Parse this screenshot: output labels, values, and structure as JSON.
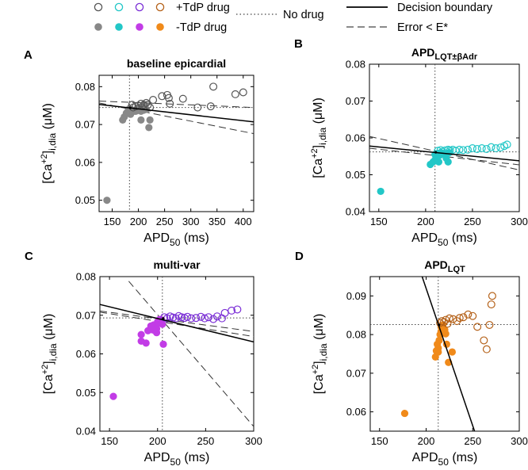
{
  "legend": {
    "tdp_label": "+TdP drug",
    "non_tdp_label": "-TdP drug",
    "no_drug_label": "No drug",
    "boundary_label": "Decision boundary",
    "error_label": "Error < E*"
  },
  "colors": {
    "baseline": "#888888",
    "lqt_badr": "#22c7c7",
    "multivar": "#7b2fd6",
    "multivar_fill": "#c23ce6",
    "lqt": "#f08a1a",
    "lqt_stroke": "#b5621a"
  },
  "chart_data": [
    {
      "id": "A",
      "panel_label": "A",
      "type": "scatter",
      "title": "baseline epicardial",
      "title_main": "baseline epicardial",
      "title_sub": "",
      "title_suffix": "",
      "xlabel": "APD",
      "xlabel_sub": "50",
      "xlabel_unit": " (ms)",
      "ylabel": "[Ca",
      "ylabel_sup": "+2",
      "ylabel_rest": "]",
      "ylabel_sub": "i,dia",
      "ylabel_unit": " (μM)",
      "xlim": [
        125,
        420
      ],
      "ylim": [
        0.047,
        0.083
      ],
      "xticks": [
        150,
        200,
        250,
        300,
        350,
        400
      ],
      "yticks": [
        0.05,
        0.06,
        0.07,
        0.08
      ],
      "xtick_labels": [
        "150",
        "200",
        "250",
        "300",
        "350",
        "400"
      ],
      "ytick_labels": [
        "0.05",
        "0.06",
        "0.07",
        "0.08"
      ],
      "no_drug": {
        "x": 183,
        "y": 0.0745
      },
      "tdp_points": [
        [
          188,
          0.0752
        ],
        [
          190,
          0.0745
        ],
        [
          195,
          0.0748
        ],
        [
          200,
          0.075
        ],
        [
          205,
          0.0755
        ],
        [
          210,
          0.0752
        ],
        [
          215,
          0.0757
        ],
        [
          218,
          0.0752
        ],
        [
          222,
          0.0745
        ],
        [
          228,
          0.0765
        ],
        [
          245,
          0.0775
        ],
        [
          255,
          0.0778
        ],
        [
          258,
          0.077
        ],
        [
          285,
          0.0768
        ],
        [
          313,
          0.0745
        ],
        [
          338,
          0.0748
        ],
        [
          343,
          0.08
        ],
        [
          385,
          0.078
        ],
        [
          400,
          0.0785
        ],
        [
          260,
          0.0755
        ]
      ],
      "non_tdp_points": [
        [
          140,
          0.05
        ],
        [
          170,
          0.0712
        ],
        [
          173,
          0.072
        ],
        [
          177,
          0.073
        ],
        [
          180,
          0.0735
        ],
        [
          183,
          0.0742
        ],
        [
          185,
          0.0727
        ],
        [
          188,
          0.0738
        ],
        [
          192,
          0.0735
        ],
        [
          195,
          0.0735
        ],
        [
          200,
          0.0745
        ],
        [
          205,
          0.0735
        ],
        [
          210,
          0.0738
        ],
        [
          215,
          0.074
        ],
        [
          205,
          0.0712
        ],
        [
          222,
          0.0712
        ],
        [
          220,
          0.0692
        ],
        [
          210,
          0.0752
        ]
      ],
      "boundary_line": [
        [
          125,
          0.0753
        ],
        [
          420,
          0.0707
        ]
      ],
      "error_lines": [
        [
          [
            125,
            0.0757
          ],
          [
            420,
            0.0676
          ]
        ],
        [
          [
            125,
            0.0762
          ],
          [
            420,
            0.0745
          ]
        ]
      ]
    },
    {
      "id": "B",
      "panel_label": "B",
      "type": "scatter",
      "title": "APD LQT±βAdr",
      "title_main": "APD",
      "title_sub": "LQT",
      "title_suffix": "",
      "title_sub_extra": "±βAdr",
      "xlabel": "APD",
      "xlabel_sub": "50",
      "xlabel_unit": " (ms)",
      "ylabel": "[Ca",
      "ylabel_sup": "+2",
      "ylabel_rest": "]",
      "ylabel_sub": "i,dia",
      "ylabel_unit": " (μM)",
      "xlim": [
        140,
        300
      ],
      "ylim": [
        0.04,
        0.08
      ],
      "xticks": [
        150,
        200,
        250,
        300
      ],
      "yticks": [
        0.04,
        0.05,
        0.06,
        0.07,
        0.08
      ],
      "xtick_labels": [
        "150",
        "200",
        "250",
        "300"
      ],
      "ytick_labels": [
        "0.04",
        "0.05",
        "0.06",
        "0.07",
        "0.08"
      ],
      "no_drug": {
        "x": 210,
        "y": 0.0562
      },
      "tdp_points": [
        [
          213,
          0.0565
        ],
        [
          216,
          0.0567
        ],
        [
          218,
          0.0563
        ],
        [
          221,
          0.0566
        ],
        [
          224,
          0.0568
        ],
        [
          226,
          0.0566
        ],
        [
          229,
          0.0568
        ],
        [
          232,
          0.0565
        ],
        [
          236,
          0.0568
        ],
        [
          240,
          0.0567
        ],
        [
          245,
          0.0568
        ],
        [
          250,
          0.0572
        ],
        [
          255,
          0.057
        ],
        [
          260,
          0.0572
        ],
        [
          265,
          0.057
        ],
        [
          270,
          0.0575
        ],
        [
          275,
          0.0572
        ],
        [
          280,
          0.0574
        ],
        [
          284,
          0.0578
        ],
        [
          287,
          0.0582
        ]
      ],
      "non_tdp_points": [
        [
          152,
          0.0455
        ],
        [
          205,
          0.0528
        ],
        [
          208,
          0.0535
        ],
        [
          210,
          0.054
        ],
        [
          212,
          0.0552
        ],
        [
          213,
          0.0558
        ],
        [
          215,
          0.0553
        ],
        [
          216,
          0.056
        ],
        [
          218,
          0.0558
        ],
        [
          220,
          0.0555
        ],
        [
          222,
          0.0545
        ],
        [
          224,
          0.0535
        ],
        [
          225,
          0.056
        ],
        [
          214,
          0.0535
        ],
        [
          210,
          0.0555
        ]
      ],
      "boundary_line": [
        [
          140,
          0.0578
        ],
        [
          300,
          0.0538
        ]
      ],
      "error_lines": [
        [
          [
            140,
            0.0604
          ],
          [
            300,
            0.0513
          ]
        ],
        [
          [
            140,
            0.0572
          ],
          [
            300,
            0.0527
          ]
        ]
      ]
    },
    {
      "id": "C",
      "panel_label": "C",
      "type": "scatter",
      "title": "multi-var",
      "title_main": "multi-var",
      "title_sub": "",
      "title_suffix": "",
      "xlabel": "APD",
      "xlabel_sub": "50",
      "xlabel_unit": " (ms)",
      "ylabel": "[Ca",
      "ylabel_sup": "+2",
      "ylabel_rest": "]",
      "ylabel_sub": "i,dia",
      "ylabel_unit": " (μM)",
      "xlim": [
        140,
        300
      ],
      "ylim": [
        0.04,
        0.08
      ],
      "xticks": [
        150,
        200,
        250,
        300
      ],
      "yticks": [
        0.04,
        0.05,
        0.06,
        0.07,
        0.08
      ],
      "xtick_labels": [
        "150",
        "200",
        "250",
        "300"
      ],
      "ytick_labels": [
        "0.04",
        "0.05",
        "0.06",
        "0.07",
        "0.08"
      ],
      "no_drug": {
        "x": 205,
        "y": 0.0693
      },
      "tdp_points": [
        [
          207,
          0.0695
        ],
        [
          210,
          0.0692
        ],
        [
          213,
          0.0697
        ],
        [
          216,
          0.0694
        ],
        [
          219,
          0.0692
        ],
        [
          222,
          0.0698
        ],
        [
          225,
          0.0695
        ],
        [
          228,
          0.0693
        ],
        [
          231,
          0.0696
        ],
        [
          235,
          0.0692
        ],
        [
          240,
          0.0693
        ],
        [
          245,
          0.0696
        ],
        [
          249,
          0.0692
        ],
        [
          253,
          0.0695
        ],
        [
          258,
          0.069
        ],
        [
          262,
          0.0697
        ],
        [
          267,
          0.0692
        ],
        [
          270,
          0.0706
        ],
        [
          277,
          0.0712
        ],
        [
          283,
          0.0715
        ]
      ],
      "non_tdp_points": [
        [
          154,
          0.049
        ],
        [
          183,
          0.0633
        ],
        [
          183,
          0.065
        ],
        [
          188,
          0.0628
        ],
        [
          190,
          0.066
        ],
        [
          193,
          0.0672
        ],
        [
          195,
          0.0662
        ],
        [
          196,
          0.0675
        ],
        [
          198,
          0.0668
        ],
        [
          199,
          0.0665
        ],
        [
          200,
          0.0683
        ],
        [
          201,
          0.068
        ],
        [
          202,
          0.0689
        ],
        [
          203,
          0.0685
        ],
        [
          205,
          0.0677
        ],
        [
          204,
          0.0688
        ],
        [
          206,
          0.0625
        ],
        [
          199,
          0.0655
        ]
      ],
      "boundary_line": [
        [
          140,
          0.0728
        ],
        [
          300,
          0.0631
        ]
      ],
      "error_lines": [
        [
          [
            140,
            0.0711
          ],
          [
            300,
            0.0658
          ]
        ],
        [
          [
            140,
            0.0708
          ],
          [
            300,
            0.0645
          ]
        ],
        [
          [
            170,
            0.0788
          ],
          [
            300,
            0.0412
          ]
        ]
      ]
    },
    {
      "id": "D",
      "panel_label": "D",
      "type": "scatter",
      "title": "APD LQT",
      "title_main": "APD",
      "title_sub": "LQT",
      "title_suffix": "",
      "title_sub_extra": "",
      "xlabel": "APD",
      "xlabel_sub": "50",
      "xlabel_unit": " (ms)",
      "ylabel": "[Ca",
      "ylabel_sup": "+2",
      "ylabel_rest": "]",
      "ylabel_sub": "i,dia",
      "ylabel_unit": " (μM)",
      "xlim": [
        140,
        300
      ],
      "ylim": [
        0.055,
        0.095
      ],
      "xticks": [
        150,
        200,
        250,
        300
      ],
      "yticks": [
        0.06,
        0.07,
        0.08,
        0.09
      ],
      "xtick_labels": [
        "150",
        "200",
        "250",
        "300"
      ],
      "ytick_labels": [
        "0.06",
        "0.07",
        "0.08",
        "0.09"
      ],
      "no_drug": {
        "x": 213,
        "y": 0.0826
      },
      "tdp_points": [
        [
          215,
          0.083
        ],
        [
          217,
          0.0835
        ],
        [
          219,
          0.0832
        ],
        [
          221,
          0.0838
        ],
        [
          223,
          0.0828
        ],
        [
          225,
          0.0842
        ],
        [
          229,
          0.084
        ],
        [
          233,
          0.0835
        ],
        [
          236,
          0.0843
        ],
        [
          240,
          0.0845
        ],
        [
          245,
          0.0852
        ],
        [
          250,
          0.0848
        ],
        [
          255,
          0.082
        ],
        [
          262,
          0.0785
        ],
        [
          265,
          0.0762
        ],
        [
          268,
          0.0825
        ],
        [
          270,
          0.0878
        ],
        [
          271,
          0.09
        ]
      ],
      "non_tdp_points": [
        [
          177,
          0.0596
        ],
        [
          210,
          0.0742
        ],
        [
          211,
          0.0758
        ],
        [
          212,
          0.0775
        ],
        [
          213,
          0.0755
        ],
        [
          214,
          0.0785
        ],
        [
          215,
          0.08
        ],
        [
          216,
          0.0808
        ],
        [
          216,
          0.082
        ],
        [
          217,
          0.0815
        ],
        [
          218,
          0.0825
        ],
        [
          220,
          0.0812
        ],
        [
          221,
          0.0802
        ],
        [
          222,
          0.0775
        ],
        [
          224,
          0.0728
        ],
        [
          228,
          0.0755
        ],
        [
          213,
          0.0765
        ]
      ],
      "boundary_line": [
        [
          195,
          0.0955
        ],
        [
          252,
          0.055
        ]
      ],
      "error_lines": []
    }
  ]
}
